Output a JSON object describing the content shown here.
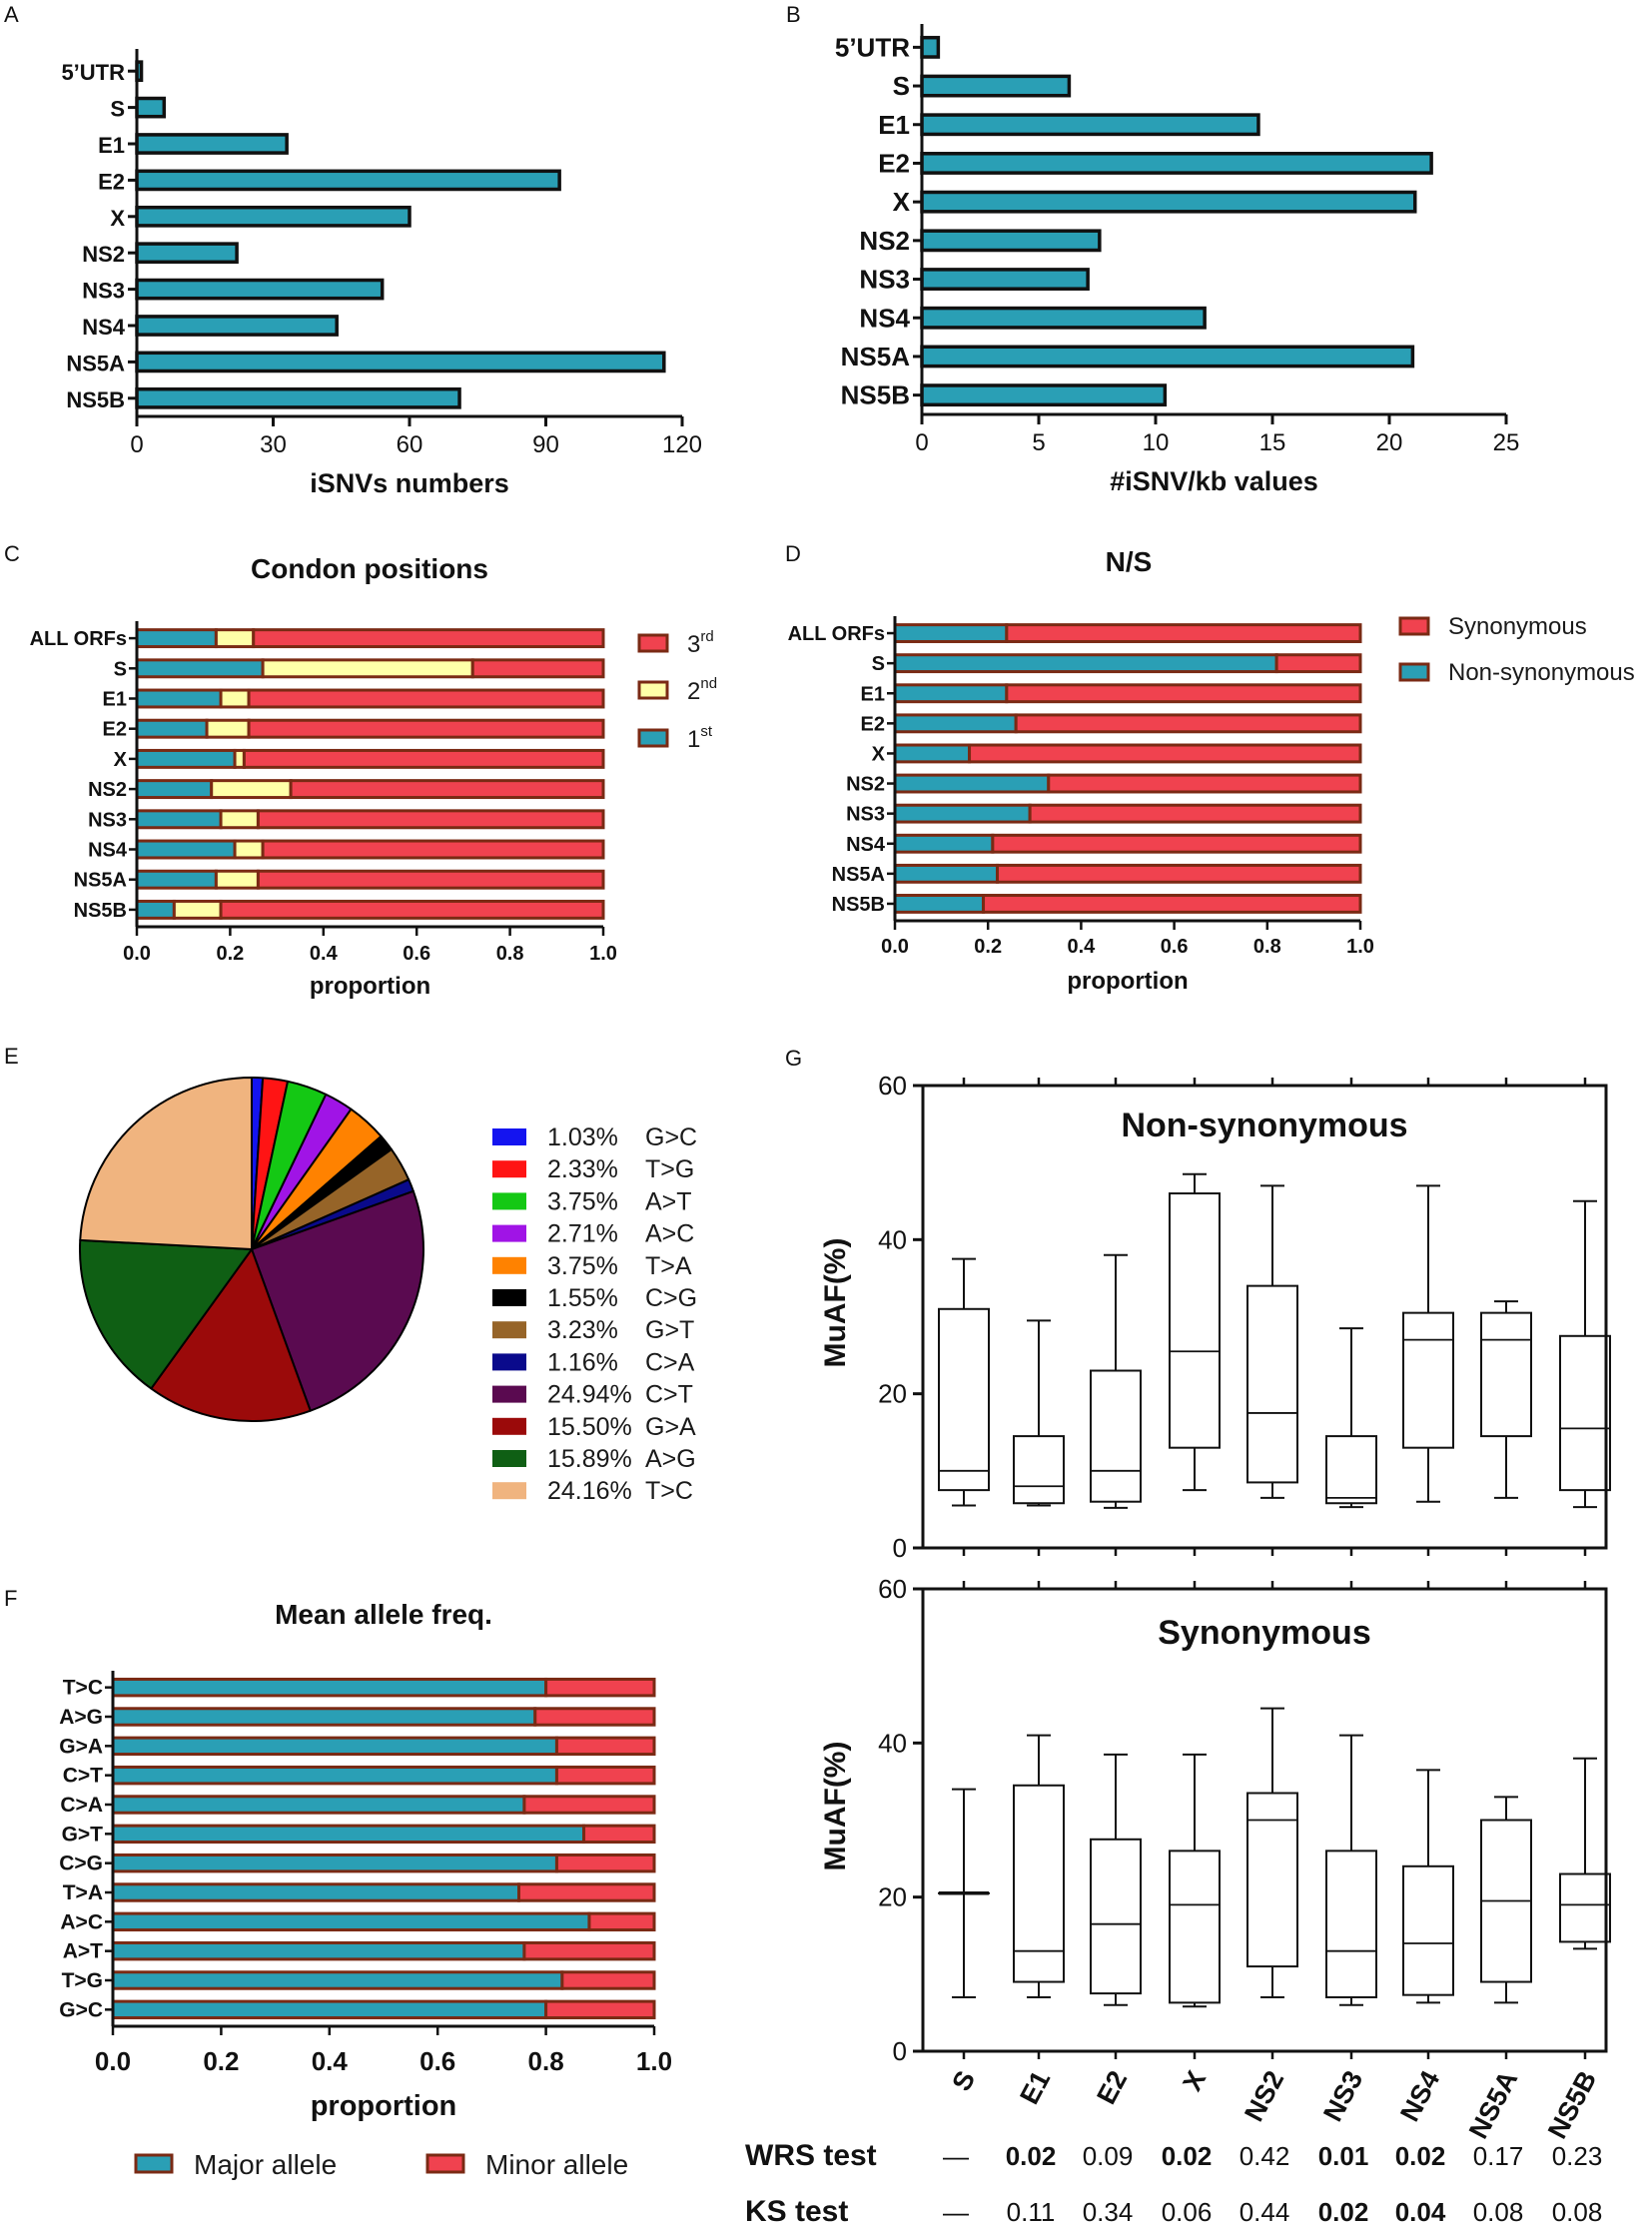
{
  "colors": {
    "teal": "#2a9fb5",
    "red": "#f0424f",
    "cream": "#ffffa8",
    "border_brown": "#7a2a14",
    "black": "#111111"
  },
  "chart_data": [
    {
      "id": "A",
      "panel_label": "A",
      "type": "bar",
      "orientation": "horizontal",
      "categories": [
        "5’UTR",
        "S",
        "E1",
        "E2",
        "X",
        "NS2",
        "NS3",
        "NS4",
        "NS5A",
        "NS5B"
      ],
      "values": [
        1,
        6,
        33,
        93,
        60,
        22,
        54,
        44,
        116,
        71
      ],
      "title": "",
      "xlabel": "iSNVs numbers",
      "ylabel": "",
      "xlim": [
        0,
        120
      ],
      "xticks": [
        0,
        30,
        60,
        90,
        120
      ]
    },
    {
      "id": "B",
      "panel_label": "B",
      "type": "bar",
      "orientation": "horizontal",
      "categories": [
        "5’UTR",
        "S",
        "E1",
        "E2",
        "X",
        "NS2",
        "NS3",
        "NS4",
        "NS5A",
        "NS5B"
      ],
      "values": [
        0.7,
        6.3,
        14.4,
        21.8,
        21.1,
        7.6,
        7.1,
        12.1,
        21.0,
        10.4
      ],
      "title": "",
      "xlabel": "#iSNV/kb values",
      "ylabel": "",
      "xlim": [
        0,
        25
      ],
      "xticks": [
        0,
        5,
        10,
        15,
        20,
        25
      ]
    },
    {
      "id": "C",
      "panel_label": "C",
      "type": "bar",
      "orientation": "horizontal",
      "stacked": true,
      "title": "Condon positions",
      "xlabel": "proportion",
      "ylabel": "",
      "xlim": [
        0,
        1
      ],
      "xticks": [
        "0.0",
        "0.2",
        "0.4",
        "0.6",
        "0.8",
        "1.0"
      ],
      "categories": [
        "ALL ORFs",
        "S",
        "E1",
        "E2",
        "X",
        "NS2",
        "NS3",
        "NS4",
        "NS5A",
        "NS5B"
      ],
      "series": [
        {
          "name": "1st",
          "values": [
            0.17,
            0.27,
            0.18,
            0.15,
            0.21,
            0.16,
            0.18,
            0.21,
            0.17,
            0.08
          ]
        },
        {
          "name": "2nd",
          "values": [
            0.08,
            0.45,
            0.06,
            0.09,
            0.02,
            0.17,
            0.08,
            0.06,
            0.09,
            0.1
          ]
        },
        {
          "name": "3rd",
          "values": [
            0.75,
            0.28,
            0.76,
            0.76,
            0.77,
            0.67,
            0.74,
            0.73,
            0.74,
            0.82
          ]
        }
      ],
      "legend": [
        {
          "base": "3",
          "sup": "rd",
          "series": "3rd"
        },
        {
          "base": "2",
          "sup": "nd",
          "series": "2nd"
        },
        {
          "base": "1",
          "sup": "st",
          "series": "1st"
        }
      ]
    },
    {
      "id": "D",
      "panel_label": "D",
      "type": "bar",
      "orientation": "horizontal",
      "stacked": true,
      "title": "N/S",
      "xlabel": "proportion",
      "ylabel": "",
      "xlim": [
        0,
        1
      ],
      "xticks": [
        "0.0",
        "0.2",
        "0.4",
        "0.6",
        "0.8",
        "1.0"
      ],
      "categories": [
        "ALL ORFs",
        "S",
        "E1",
        "E2",
        "X",
        "NS2",
        "NS3",
        "NS4",
        "NS5A",
        "NS5B"
      ],
      "series": [
        {
          "name": "Non-synonymous",
          "values": [
            0.24,
            0.82,
            0.24,
            0.26,
            0.16,
            0.33,
            0.29,
            0.21,
            0.22,
            0.19
          ]
        },
        {
          "name": "Synonymous",
          "values": [
            0.76,
            0.18,
            0.76,
            0.74,
            0.84,
            0.67,
            0.71,
            0.79,
            0.78,
            0.81
          ]
        }
      ],
      "legend": [
        "Synonymous",
        "Non-synonymous"
      ]
    },
    {
      "id": "E",
      "panel_label": "E",
      "type": "pie",
      "title": "",
      "slices": [
        {
          "pct": 1.03,
          "label": "1.03%",
          "name": "G>C",
          "color": "#1414f0"
        },
        {
          "pct": 2.33,
          "label": "2.33%",
          "name": "T>G",
          "color": "#ff1414"
        },
        {
          "pct": 3.75,
          "label": "3.75%",
          "name": "A>T",
          "color": "#14c814"
        },
        {
          "pct": 2.71,
          "label": "2.71%",
          "name": "A>C",
          "color": "#a014e6"
        },
        {
          "pct": 3.75,
          "label": "3.75%",
          "name": "T>A",
          "color": "#ff8200"
        },
        {
          "pct": 1.55,
          "label": "1.55%",
          "name": "C>G",
          "color": "#000000"
        },
        {
          "pct": 3.23,
          "label": "3.23%",
          "name": "G>T",
          "color": "#966428"
        },
        {
          "pct": 1.16,
          "label": "1.16%",
          "name": "C>A",
          "color": "#0a0a8c"
        },
        {
          "pct": 24.94,
          "label": "24.94%",
          "name": "C>T",
          "color": "#5a0a50"
        },
        {
          "pct": 15.5,
          "label": "15.50%",
          "name": "G>A",
          "color": "#9b0a0a"
        },
        {
          "pct": 15.89,
          "label": "15.89%",
          "name": "A>G",
          "color": "#0f5f14"
        },
        {
          "pct": 24.16,
          "label": "24.16%",
          "name": "T>C",
          "color": "#f0b47f"
        }
      ]
    },
    {
      "id": "F",
      "panel_label": "F",
      "type": "bar",
      "orientation": "horizontal",
      "stacked": true,
      "title": "Mean allele freq.",
      "xlabel": "proportion",
      "ylabel": "",
      "xlim": [
        0,
        1
      ],
      "xticks": [
        "0.0",
        "0.2",
        "0.4",
        "0.6",
        "0.8",
        "1.0"
      ],
      "categories": [
        "T>C",
        "A>G",
        "G>A",
        "C>T",
        "C>A",
        "G>T",
        "C>G",
        "T>A",
        "A>C",
        "A>T",
        "T>G",
        "G>C"
      ],
      "series": [
        {
          "name": "Major allele",
          "values": [
            0.8,
            0.78,
            0.82,
            0.82,
            0.76,
            0.87,
            0.82,
            0.75,
            0.88,
            0.76,
            0.83,
            0.8
          ]
        },
        {
          "name": "Minor allele",
          "values": [
            0.2,
            0.22,
            0.18,
            0.18,
            0.24,
            0.13,
            0.18,
            0.25,
            0.12,
            0.24,
            0.17,
            0.2
          ]
        }
      ],
      "legend": [
        "Major allele",
        "Minor allele"
      ]
    },
    {
      "id": "G",
      "panel_label": "G",
      "type": "box",
      "categories": [
        "S",
        "E1",
        "E2",
        "X",
        "NS2",
        "NS3",
        "NS4",
        "NS5A",
        "NS5B"
      ],
      "ylabel": "MuAF(%)",
      "ylim": [
        0,
        60
      ],
      "yticks": [
        0,
        20,
        40,
        60
      ],
      "panels": [
        {
          "title": "Non-synonymous",
          "boxes": [
            {
              "min": 5.5,
              "q1": 7.5,
              "median": 10,
              "q3": 31,
              "max": 37.5
            },
            {
              "min": 5.5,
              "q1": 5.8,
              "median": 8,
              "q3": 14.5,
              "max": 29.5
            },
            {
              "min": 5.2,
              "q1": 6,
              "median": 10,
              "q3": 23,
              "max": 38
            },
            {
              "min": 7.5,
              "q1": 13,
              "median": 25.5,
              "q3": 46,
              "max": 48.5
            },
            {
              "min": 6.5,
              "q1": 8.5,
              "median": 17.5,
              "q3": 34,
              "max": 47
            },
            {
              "min": 5.3,
              "q1": 5.8,
              "median": 6.5,
              "q3": 14.5,
              "max": 28.5
            },
            {
              "min": 6,
              "q1": 13,
              "median": 27,
              "q3": 30.5,
              "max": 47
            },
            {
              "min": 6.5,
              "q1": 14.5,
              "median": 27,
              "q3": 30.5,
              "max": 32
            },
            {
              "min": 5.3,
              "q1": 7.5,
              "median": 15.5,
              "q3": 27.5,
              "max": 45
            }
          ]
        },
        {
          "title": "Synonymous",
          "boxes": [
            {
              "min": 7,
              "q1": 20.5,
              "median": 20.5,
              "q3": 20.5,
              "max": 34
            },
            {
              "min": 7,
              "q1": 9,
              "median": 13,
              "q3": 34.5,
              "max": 41
            },
            {
              "min": 6,
              "q1": 7.5,
              "median": 16.5,
              "q3": 27.5,
              "max": 38.5
            },
            {
              "min": 5.8,
              "q1": 6.3,
              "median": 19,
              "q3": 26,
              "max": 38.5
            },
            {
              "min": 7,
              "q1": 11,
              "median": 30,
              "q3": 33.5,
              "max": 44.5
            },
            {
              "min": 6,
              "q1": 7,
              "median": 13,
              "q3": 26,
              "max": 41
            },
            {
              "min": 6.3,
              "q1": 7.3,
              "median": 14,
              "q3": 24,
              "max": 36.5
            },
            {
              "min": 6.3,
              "q1": 9,
              "median": 19.5,
              "q3": 30,
              "max": 33
            },
            {
              "min": 13.3,
              "q1": 14.2,
              "median": 19,
              "q3": 23,
              "max": 38
            }
          ]
        }
      ],
      "tests": [
        {
          "name": "WRS test",
          "values": [
            "—",
            "0.02",
            "0.09",
            "0.02",
            "0.42",
            "0.01",
            "0.02",
            "0.17",
            "0.23"
          ],
          "bold": [
            false,
            true,
            false,
            true,
            false,
            true,
            true,
            false,
            false
          ]
        },
        {
          "name": "KS test",
          "values": [
            "—",
            "0.11",
            "0.34",
            "0.06",
            "0.44",
            "0.02",
            "0.04",
            "0.08",
            "0.08"
          ],
          "bold": [
            false,
            false,
            false,
            false,
            false,
            true,
            true,
            false,
            false
          ]
        }
      ]
    }
  ]
}
